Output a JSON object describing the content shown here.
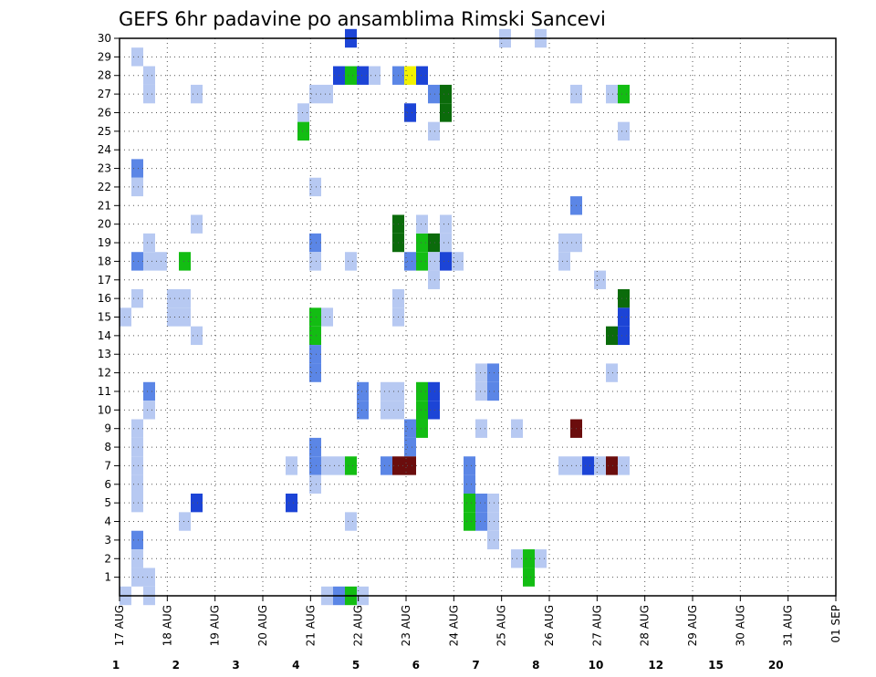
{
  "chart_data": {
    "type": "heatmap",
    "title": "GEFS 6hr padavine po ansamblima Rimski Sancevi",
    "x_tick_labels": [
      "17 AUG",
      "18 AUG",
      "19 AUG",
      "20 AUG",
      "21 AUG",
      "22 AUG",
      "23 AUG",
      "24 AUG",
      "25 AUG",
      "26 AUG",
      "27 AUG",
      "28 AUG",
      "29 AUG",
      "30 AUG",
      "31 AUG",
      "01 SEP"
    ],
    "y_tick_labels": [
      "1",
      "2",
      "3",
      "4",
      "5",
      "6",
      "7",
      "8",
      "9",
      "10",
      "11",
      "12",
      "13",
      "14",
      "15",
      "16",
      "17",
      "18",
      "19",
      "20",
      "21",
      "22",
      "23",
      "24",
      "25",
      "26",
      "27",
      "28",
      "29",
      "30"
    ],
    "xlim": [
      0,
      60
    ],
    "ylim": [
      0,
      30
    ],
    "grid": true,
    "legend": {
      "placement": "bottom",
      "levels": [
        "1",
        "2",
        "3",
        "4",
        "5",
        "6",
        "7",
        "8",
        "10",
        "12",
        "15",
        "20"
      ],
      "colors": [
        "#b7c9f2",
        "#5b86e6",
        "#1c44d6",
        "#6ee25c",
        "#13bd13",
        "#0b6b0b",
        "#f2f200",
        "#ffb33f",
        "#ff8a1e",
        "#e83a10",
        "#b80d0d",
        "#6b0d0d"
      ]
    },
    "cells": [
      [
        0,
        0,
        1
      ],
      [
        2,
        0,
        1
      ],
      [
        1,
        29,
        1
      ],
      [
        2,
        28,
        1
      ],
      [
        2,
        27,
        1
      ],
      [
        6,
        27,
        1
      ],
      [
        1,
        23,
        2
      ],
      [
        1,
        22,
        1
      ],
      [
        6,
        20,
        1
      ],
      [
        2,
        19,
        1
      ],
      [
        1,
        18,
        2
      ],
      [
        2,
        18,
        1
      ],
      [
        3,
        18,
        1
      ],
      [
        5,
        18,
        5
      ],
      [
        1,
        16,
        1
      ],
      [
        4,
        16,
        1
      ],
      [
        5,
        16,
        1
      ],
      [
        0,
        15,
        1
      ],
      [
        4,
        15,
        1
      ],
      [
        5,
        15,
        1
      ],
      [
        6,
        14,
        1
      ],
      [
        2,
        11,
        2
      ],
      [
        2,
        10,
        1
      ],
      [
        1,
        9,
        1
      ],
      [
        1,
        8,
        1
      ],
      [
        1,
        7,
        1
      ],
      [
        1,
        6,
        1
      ],
      [
        1,
        5,
        1
      ],
      [
        6,
        5,
        3
      ],
      [
        5,
        4,
        1
      ],
      [
        1,
        3,
        2
      ],
      [
        1,
        2,
        1
      ],
      [
        1,
        1,
        1
      ],
      [
        2,
        1,
        1
      ],
      [
        14,
        5,
        3
      ],
      [
        14,
        7,
        1
      ],
      [
        15,
        26,
        1
      ],
      [
        15,
        25,
        5
      ],
      [
        16,
        27,
        1
      ],
      [
        17,
        27,
        1
      ],
      [
        16,
        22,
        1
      ],
      [
        16,
        19,
        2
      ],
      [
        16,
        18,
        1
      ],
      [
        16,
        15,
        5
      ],
      [
        16,
        14,
        5
      ],
      [
        17,
        15,
        1
      ],
      [
        16,
        13,
        2
      ],
      [
        16,
        12,
        2
      ],
      [
        16,
        8,
        2
      ],
      [
        16,
        7,
        2
      ],
      [
        16,
        6,
        1
      ],
      [
        17,
        7,
        1
      ],
      [
        17,
        0,
        1
      ],
      [
        18,
        28,
        3
      ],
      [
        18,
        7,
        1
      ],
      [
        18,
        0,
        2
      ],
      [
        19,
        28,
        5
      ],
      [
        19,
        7,
        5
      ],
      [
        19,
        18,
        1
      ],
      [
        19,
        0,
        5
      ],
      [
        19,
        4,
        1
      ],
      [
        19,
        30,
        3
      ],
      [
        20,
        28,
        3
      ],
      [
        20,
        11,
        2
      ],
      [
        20,
        10,
        2
      ],
      [
        21,
        28,
        1
      ],
      [
        20,
        0,
        1
      ],
      [
        22,
        11,
        1
      ],
      [
        22,
        10,
        1
      ],
      [
        23,
        11,
        1
      ],
      [
        23,
        10,
        1
      ],
      [
        22,
        7,
        2
      ],
      [
        23,
        28,
        2
      ],
      [
        23,
        7,
        12
      ],
      [
        23,
        19,
        6
      ],
      [
        23,
        20,
        6
      ],
      [
        23,
        15,
        1
      ],
      [
        23,
        16,
        1
      ],
      [
        24,
        28,
        7
      ],
      [
        24,
        26,
        3
      ],
      [
        24,
        18,
        2
      ],
      [
        24,
        9,
        2
      ],
      [
        24,
        8,
        2
      ],
      [
        24,
        7,
        12
      ],
      [
        25,
        28,
        3
      ],
      [
        25,
        19,
        5
      ],
      [
        25,
        18,
        5
      ],
      [
        25,
        11,
        5
      ],
      [
        25,
        10,
        5
      ],
      [
        25,
        9,
        5
      ],
      [
        25,
        20,
        1
      ],
      [
        26,
        27,
        2
      ],
      [
        26,
        25,
        1
      ],
      [
        26,
        19,
        6
      ],
      [
        26,
        18,
        1
      ],
      [
        26,
        17,
        1
      ],
      [
        26,
        11,
        3
      ],
      [
        26,
        10,
        3
      ],
      [
        27,
        27,
        6
      ],
      [
        27,
        26,
        6
      ],
      [
        27,
        19,
        1
      ],
      [
        27,
        20,
        1
      ],
      [
        27,
        18,
        3
      ],
      [
        28,
        18,
        1
      ],
      [
        29,
        7,
        2
      ],
      [
        29,
        6,
        2
      ],
      [
        29,
        5,
        5
      ],
      [
        29,
        4,
        5
      ],
      [
        30,
        5,
        2
      ],
      [
        30,
        4,
        2
      ],
      [
        30,
        12,
        1
      ],
      [
        30,
        11,
        1
      ],
      [
        30,
        9,
        1
      ],
      [
        31,
        5,
        1
      ],
      [
        31,
        4,
        1
      ],
      [
        31,
        3,
        1
      ],
      [
        31,
        12,
        2
      ],
      [
        31,
        11,
        2
      ],
      [
        32,
        30,
        1
      ],
      [
        33,
        9,
        1
      ],
      [
        33,
        2,
        1
      ],
      [
        34,
        2,
        5
      ],
      [
        34,
        1,
        5
      ],
      [
        35,
        2,
        1
      ],
      [
        35,
        30,
        1
      ],
      [
        37,
        7,
        1
      ],
      [
        37,
        19,
        1
      ],
      [
        37,
        18,
        1
      ],
      [
        38,
        27,
        1
      ],
      [
        38,
        21,
        2
      ],
      [
        38,
        9,
        15
      ],
      [
        38,
        7,
        1
      ],
      [
        38,
        19,
        1
      ],
      [
        39,
        7,
        3
      ],
      [
        40,
        7,
        1
      ],
      [
        40,
        17,
        1
      ],
      [
        41,
        27,
        1
      ],
      [
        41,
        12,
        1
      ],
      [
        41,
        7,
        20
      ],
      [
        42,
        27,
        5
      ],
      [
        42,
        16,
        6
      ],
      [
        42,
        15,
        3
      ],
      [
        41,
        14,
        6
      ],
      [
        42,
        14,
        3
      ],
      [
        42,
        25,
        1
      ],
      [
        42,
        7,
        1
      ]
    ]
  }
}
